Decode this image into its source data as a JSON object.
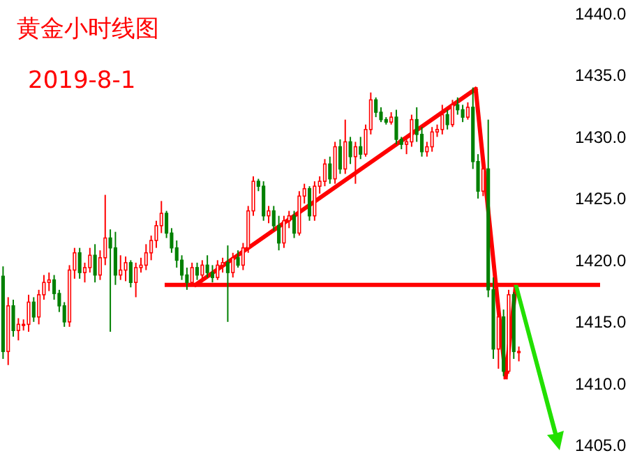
{
  "chart_data": {
    "type": "candlestick",
    "title": "黄金小时线图",
    "subtitle": "2019-8-1",
    "categories": [
      null,
      null,
      null,
      null,
      null,
      null,
      null,
      null,
      null,
      null,
      null,
      null,
      null,
      null,
      null,
      null,
      null,
      null,
      null,
      null,
      null,
      null,
      null,
      null,
      null,
      null,
      null,
      null,
      null,
      null,
      null,
      null,
      null,
      null,
      null,
      null,
      null,
      null,
      null,
      null,
      null,
      null,
      null,
      null,
      null,
      null,
      null,
      null,
      null,
      null,
      null,
      null,
      null,
      null,
      null,
      null,
      null,
      null,
      null,
      null,
      null,
      null,
      null,
      null,
      null,
      null,
      null,
      null,
      null,
      null,
      null,
      null,
      null,
      null,
      null,
      null,
      null,
      null,
      null,
      null,
      null,
      null,
      null,
      null,
      null,
      null,
      null,
      null,
      null,
      null,
      null,
      null,
      null,
      null,
      null,
      null,
      null,
      null,
      null,
      null,
      null,
      null
    ],
    "colors": [
      "#008000",
      "#ff0000",
      "#008000",
      "#ff0000",
      "#ff0000",
      "#ff0000",
      "#008000",
      "#ff0000",
      "#ff0000",
      "#ff0000",
      "#008000",
      "#008000",
      "#008000",
      "#ff0000",
      "#ff0000",
      "#008000",
      "#ff0000",
      "#ff0000",
      "#008000",
      "#ff0000",
      "#ff0000",
      "#008000",
      "#008000",
      "#ff0000",
      "#ff0000",
      "#008000",
      "#ff0000",
      "#ff0000",
      "#ff0000",
      "#ff0000",
      "#ff0000",
      "#ff0000",
      "#008000",
      "#008000",
      "#008000",
      "#008000",
      "#008000",
      "#ff0000",
      "#008000",
      "#ff0000",
      "#008000",
      "#008000",
      "#ff0000",
      "#ff0000",
      "#008000",
      "#ff0000",
      "#008000",
      "#ff0000",
      "#ff0000",
      "#ff0000",
      "#008000",
      "#008000",
      "#ff0000",
      "#008000",
      "#008000",
      "#ff0000",
      "#ff0000",
      "#008000",
      "#ff0000",
      "#ff0000",
      "#008000",
      "#ff0000",
      "#ff0000",
      "#ff0000",
      "#008000",
      "#ff0000",
      "#008000",
      "#ff0000",
      "#008000",
      "#ff0000",
      "#008000",
      "#ff0000",
      "#ff0000",
      "#008000",
      "#008000",
      "#008000",
      "#ff0000",
      "#008000",
      "#008000",
      "#ff0000",
      "#ff0000",
      "#008000",
      "#008000",
      "#ff0000",
      "#ff0000",
      "#ff0000",
      "#ff0000",
      "#008000",
      "#ff0000",
      "#008000",
      "#008000",
      "#ff0000",
      "#008000",
      "#008000",
      "#ff0000",
      "#008000",
      "#008000",
      "#ff0000",
      "#008000",
      "#ff0000",
      "#008000",
      "#ff0000"
    ],
    "ohlc": [
      [
        1418.7,
        1419.5,
        1412.0,
        1412.6
      ],
      [
        1412.6,
        1417.0,
        1411.5,
        1416.3
      ],
      [
        1416.3,
        1416.8,
        1413.8,
        1414.3
      ],
      [
        1414.3,
        1415.3,
        1413.5,
        1414.8
      ],
      [
        1414.8,
        1415.2,
        1414.3,
        1414.8
      ],
      [
        1414.8,
        1417.2,
        1414.2,
        1416.6
      ],
      [
        1416.6,
        1417.0,
        1415.0,
        1415.4
      ],
      [
        1415.4,
        1417.6,
        1414.8,
        1417.2
      ],
      [
        1417.2,
        1418.8,
        1416.8,
        1418.2
      ],
      [
        1418.2,
        1419.0,
        1417.5,
        1418.4
      ],
      [
        1418.4,
        1418.8,
        1416.8,
        1417.3
      ],
      [
        1417.3,
        1417.6,
        1415.8,
        1416.3
      ],
      [
        1416.3,
        1416.6,
        1414.6,
        1415.0
      ],
      [
        1415.0,
        1419.6,
        1414.6,
        1419.2
      ],
      [
        1419.2,
        1421.0,
        1418.5,
        1420.6
      ],
      [
        1420.6,
        1421.0,
        1418.5,
        1419.0
      ],
      [
        1419.0,
        1419.8,
        1418.2,
        1419.4
      ],
      [
        1419.4,
        1421.0,
        1419.0,
        1420.4
      ],
      [
        1420.4,
        1421.3,
        1418.2,
        1418.8
      ],
      [
        1418.8,
        1420.8,
        1418.4,
        1420.2
      ],
      [
        1420.2,
        1425.3,
        1419.6,
        1421.8
      ],
      [
        1421.8,
        1422.5,
        1414.2,
        1421.0
      ],
      [
        1421.0,
        1422.3,
        1418.0,
        1418.8
      ],
      [
        1418.8,
        1420.4,
        1418.4,
        1419.2
      ],
      [
        1419.2,
        1420.3,
        1418.3,
        1419.8
      ],
      [
        1419.8,
        1420.0,
        1417.8,
        1418.2
      ],
      [
        1418.2,
        1419.8,
        1417.0,
        1419.4
      ],
      [
        1419.4,
        1420.2,
        1419.0,
        1419.6
      ],
      [
        1419.6,
        1421.3,
        1419.2,
        1420.6
      ],
      [
        1420.6,
        1422.0,
        1420.0,
        1421.6
      ],
      [
        1421.6,
        1423.2,
        1421.0,
        1422.8
      ],
      [
        1422.8,
        1424.8,
        1422.2,
        1423.8
      ],
      [
        1423.8,
        1424.0,
        1421.8,
        1422.2
      ],
      [
        1422.2,
        1422.6,
        1420.6,
        1421.0
      ],
      [
        1421.0,
        1421.6,
        1419.4,
        1420.0
      ],
      [
        1420.0,
        1420.4,
        1418.4,
        1418.8
      ],
      [
        1418.8,
        1419.4,
        1417.6,
        1418.2
      ],
      [
        1418.2,
        1419.8,
        1418.0,
        1419.4
      ],
      [
        1419.4,
        1419.8,
        1418.4,
        1418.8
      ],
      [
        1418.8,
        1420.0,
        1418.2,
        1419.6
      ],
      [
        1419.6,
        1420.4,
        1418.6,
        1419.0
      ],
      [
        1419.0,
        1419.6,
        1418.2,
        1418.6
      ],
      [
        1418.6,
        1420.0,
        1418.4,
        1419.6
      ],
      [
        1419.6,
        1420.2,
        1419.0,
        1419.8
      ],
      [
        1419.8,
        1421.2,
        1415.0,
        1419.0
      ],
      [
        1419.0,
        1420.6,
        1418.6,
        1420.2
      ],
      [
        1420.2,
        1420.8,
        1419.4,
        1419.6
      ],
      [
        1419.6,
        1421.4,
        1419.2,
        1421.0
      ],
      [
        1421.0,
        1424.4,
        1420.6,
        1424.0
      ],
      [
        1424.0,
        1426.8,
        1423.6,
        1426.4
      ],
      [
        1426.4,
        1426.6,
        1425.6,
        1426.0
      ],
      [
        1426.0,
        1426.4,
        1423.2,
        1423.6
      ],
      [
        1423.6,
        1424.4,
        1423.0,
        1424.0
      ],
      [
        1424.0,
        1424.4,
        1422.4,
        1422.8
      ],
      [
        1422.8,
        1423.6,
        1420.8,
        1421.4
      ],
      [
        1421.4,
        1423.6,
        1421.0,
        1423.2
      ],
      [
        1423.2,
        1424.0,
        1422.6,
        1423.6
      ],
      [
        1423.6,
        1424.0,
        1421.8,
        1422.2
      ],
      [
        1422.2,
        1425.6,
        1422.0,
        1425.2
      ],
      [
        1425.2,
        1426.2,
        1424.6,
        1425.8
      ],
      [
        1425.8,
        1426.0,
        1423.2,
        1423.6
      ],
      [
        1423.6,
        1426.4,
        1423.2,
        1426.0
      ],
      [
        1426.0,
        1426.8,
        1425.4,
        1426.4
      ],
      [
        1426.4,
        1428.2,
        1426.0,
        1427.8
      ],
      [
        1427.8,
        1428.4,
        1426.2,
        1426.6
      ],
      [
        1426.6,
        1429.6,
        1426.2,
        1429.2
      ],
      [
        1429.2,
        1429.8,
        1427.0,
        1427.4
      ],
      [
        1427.4,
        1431.4,
        1427.0,
        1429.6
      ],
      [
        1429.6,
        1430.0,
        1427.8,
        1428.4
      ],
      [
        1428.4,
        1429.6,
        1426.2,
        1429.2
      ],
      [
        1429.2,
        1430.0,
        1428.2,
        1428.6
      ],
      [
        1428.6,
        1431.0,
        1428.4,
        1430.6
      ],
      [
        1430.6,
        1433.6,
        1430.2,
        1433.0
      ],
      [
        1433.0,
        1433.2,
        1431.6,
        1432.0
      ],
      [
        1432.0,
        1432.4,
        1431.2,
        1431.4
      ],
      [
        1431.4,
        1431.6,
        1431.0,
        1431.2
      ],
      [
        1431.2,
        1432.0,
        1431.0,
        1431.6
      ],
      [
        1431.6,
        1432.2,
        1429.4,
        1429.8
      ],
      [
        1429.8,
        1430.0,
        1429.0,
        1429.4
      ],
      [
        1429.4,
        1430.0,
        1428.6,
        1429.6
      ],
      [
        1429.6,
        1431.8,
        1429.2,
        1431.4
      ],
      [
        1431.4,
        1432.4,
        1429.6,
        1430.2
      ],
      [
        1430.2,
        1430.8,
        1428.4,
        1428.8
      ],
      [
        1428.8,
        1429.6,
        1428.4,
        1429.2
      ],
      [
        1429.2,
        1430.8,
        1428.8,
        1430.4
      ],
      [
        1430.4,
        1431.0,
        1430.0,
        1430.6
      ],
      [
        1430.6,
        1432.6,
        1430.2,
        1431.8
      ],
      [
        1431.8,
        1432.2,
        1430.6,
        1431.0
      ],
      [
        1431.0,
        1433.0,
        1430.8,
        1432.6
      ],
      [
        1432.6,
        1433.2,
        1431.8,
        1432.2
      ],
      [
        1432.2,
        1432.6,
        1431.2,
        1431.6
      ],
      [
        1431.6,
        1432.8,
        1431.4,
        1432.4
      ],
      [
        1432.4,
        1434.0,
        1427.4,
        1428.0
      ],
      [
        1428.0,
        1428.6,
        1425.0,
        1425.6
      ],
      [
        1425.6,
        1428.0,
        1425.2,
        1427.4
      ],
      [
        1427.4,
        1431.4,
        1417.0,
        1417.6
      ],
      [
        1417.6,
        1418.6,
        1412.0,
        1412.8
      ],
      [
        1412.8,
        1416.0,
        1411.2,
        1415.4
      ],
      [
        1415.4,
        1416.0,
        1410.6,
        1411.0
      ],
      [
        1411.0,
        1417.6,
        1410.8,
        1417.2
      ],
      [
        1417.2,
        1417.4,
        1412.0,
        1412.6
      ],
      [
        1412.6,
        1413.0,
        1411.8,
        1412.6
      ]
    ],
    "ylim": [
      1403.8,
      1441.1
    ],
    "yticks": [
      {
        "value": 1405,
        "label": "1405.0"
      },
      {
        "value": 1410,
        "label": "1410.0"
      },
      {
        "value": 1415,
        "label": "1415.0"
      },
      {
        "value": 1420,
        "label": "1420.0"
      },
      {
        "value": 1425,
        "label": "1425.0"
      },
      {
        "value": 1430,
        "label": "1430.0"
      },
      {
        "value": 1435,
        "label": "1435.0"
      },
      {
        "value": 1440,
        "label": "1440.0"
      }
    ],
    "tick_labels": "y",
    "ref_lines": [
      {
        "axis": "y",
        "value": 1418,
        "label": null,
        "color": "#ff0000"
      }
    ]
  }
}
